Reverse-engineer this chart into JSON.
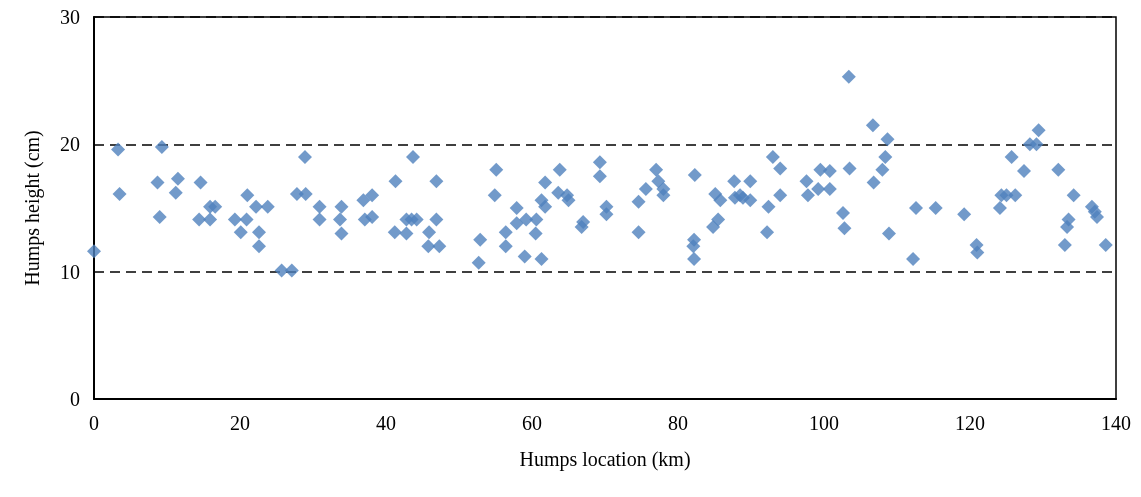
{
  "chart_data": {
    "type": "scatter",
    "xlabel": "Humps location (km)",
    "ylabel": "Humps height (cm)",
    "x": [
      0,
      3.3,
      3.5,
      8.7,
      9.3,
      9,
      11.5,
      11.2,
      14.6,
      14.4,
      15.9,
      15.9,
      16.6,
      19.3,
      20.1,
      20.9,
      21,
      22.2,
      22.6,
      22.6,
      23.8,
      25.7,
      27.1,
      27.8,
      28.9,
      29,
      30.9,
      30.9,
      33.7,
      33.9,
      33.9,
      36.9,
      38.1,
      37.1,
      38.1,
      41.3,
      43.7,
      41.2,
      42.8,
      42.8,
      44.2,
      43.5,
      45.9,
      45.8,
      46.9,
      46.9,
      47.3,
      52.9,
      52.7,
      55.1,
      54.9,
      56.4,
      56.4,
      57.9,
      57.9,
      59.2,
      59,
      60.6,
      60.5,
      61.3,
      61.3,
      61.8,
      61.8,
      63.8,
      63.6,
      64.8,
      65,
      69.3,
      69.3,
      70.2,
      70.2,
      67,
      66.8,
      74.6,
      74.6,
      75.6,
      77,
      77.3,
      78,
      78,
      82.3,
      82.2,
      82.1,
      82.2,
      85.1,
      85.8,
      85.5,
      84.8,
      87.7,
      89.9,
      87.8,
      88.5,
      88.9,
      89.9,
      92.4,
      92.2,
      93,
      94,
      94,
      97.6,
      97.8,
      99.2,
      99.5,
      100.8,
      100.8,
      103.5,
      102.6,
      102.8,
      103.4,
      106.7,
      108.7,
      108.4,
      108,
      106.8,
      108.9,
      112.2,
      112.6,
      115.3,
      119.2,
      120.9,
      121,
      124.1,
      124.3,
      125,
      126.2,
      125.7,
      127.4,
      128.2,
      129.1,
      129.4,
      132.1,
      134.2,
      133.5,
      133.3,
      133,
      136.7,
      137.1,
      137.4,
      138.6
    ],
    "values": [
      11.6,
      19.6,
      16.1,
      17,
      19.8,
      14.3,
      17.3,
      16.2,
      17,
      14.1,
      14.1,
      15.1,
      15.1,
      14.1,
      13.1,
      14.1,
      16,
      15.1,
      13.1,
      12,
      15.1,
      10.1,
      10.1,
      16.1,
      19,
      16.1,
      15.1,
      14.1,
      14.1,
      13,
      15.1,
      15.6,
      16,
      14.1,
      14.3,
      17.1,
      19,
      13.1,
      14.1,
      13,
      14.1,
      14.1,
      13.1,
      12,
      17.1,
      14.1,
      12,
      12.5,
      10.7,
      18,
      16,
      13.1,
      12,
      15,
      13.8,
      14.1,
      11.2,
      14.1,
      13,
      11,
      15.6,
      15.1,
      17,
      18,
      16.2,
      16,
      15.6,
      18.6,
      17.5,
      15.1,
      14.5,
      13.9,
      13.5,
      15.5,
      13.1,
      16.5,
      18,
      17.1,
      16.5,
      16,
      17.6,
      12.5,
      12,
      11,
      16.1,
      15.6,
      14.1,
      13.5,
      17.1,
      17.1,
      15.8,
      16,
      15.8,
      15.6,
      15.1,
      13.1,
      19,
      18.1,
      16,
      17.1,
      16,
      16.5,
      18,
      17.9,
      16.5,
      18.1,
      14.6,
      13.4,
      25.3,
      21.5,
      20.4,
      19,
      18,
      17,
      13,
      11,
      15,
      15,
      14.5,
      12.1,
      11.5,
      15,
      16,
      16,
      16,
      19,
      17.9,
      20,
      20,
      21.1,
      18,
      16,
      14.1,
      13.5,
      12.1,
      15.1,
      14.7,
      14.3,
      12.1
    ],
    "color": "#4f81bd",
    "marker": "diamond",
    "xlim": [
      0,
      140
    ],
    "xticks": [
      0,
      20,
      40,
      60,
      80,
      100,
      120,
      140
    ],
    "ylim": [
      0,
      30
    ],
    "yticks": [
      0,
      10,
      20,
      30
    ],
    "grid": "y"
  }
}
